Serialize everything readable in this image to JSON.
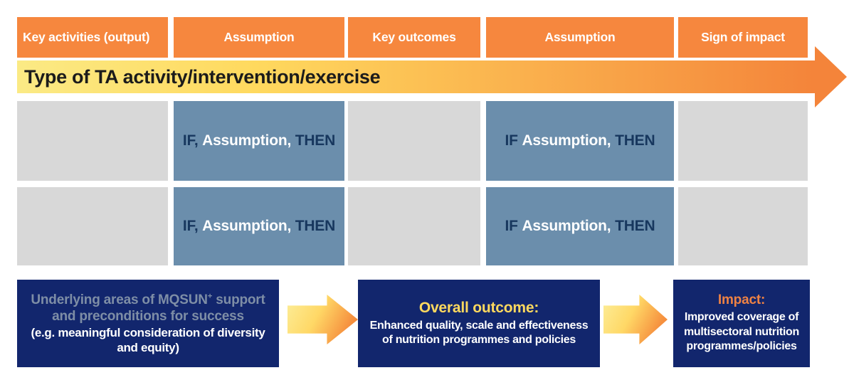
{
  "header": {
    "columns": [
      "Key activities (output)",
      "Assumption",
      "Key outcomes",
      "Assumption",
      "Sign of impact"
    ]
  },
  "banner": {
    "label": "Type of TA activity/intervention/exercise"
  },
  "cells": {
    "r1c2": {
      "if": "IF, ",
      "assumption": "Assumption, ",
      "then": "THEN"
    },
    "r1c4": {
      "if": "IF ",
      "assumption": "Assumption, ",
      "then": "THEN"
    },
    "r2c2": {
      "if": "IF, ",
      "assumption": "Assumption, ",
      "then": "THEN"
    },
    "r2c4": {
      "if": "IF ",
      "assumption": "Assumption, ",
      "then": "THEN"
    }
  },
  "bottom": {
    "box1": {
      "heading_pre": "Underlying areas of MQSUN",
      "heading_sup": "+",
      "heading_post": " support and preconditions for success",
      "body": "(e.g. meaningful consideration of diversity and equity)"
    },
    "box2": {
      "heading": "Overall outcome:",
      "body": "Enhanced quality, scale and effectiveness of nutrition programmes and policies"
    },
    "box3": {
      "heading": "Impact:",
      "body": "Improved coverage of multisectoral nutrition programmes/policies"
    }
  },
  "colors": {
    "header_orange": "#F6873E",
    "slate_blue": "#6B8EAC",
    "placeholder_gray": "#D8D8D8",
    "navy": "#12266D",
    "if_then_text": "#17375E",
    "muted_heading": "#7E8EA6",
    "outcome_yellow": "#FFD95E",
    "impact_orange": "#EE8244",
    "banner_gradient_start": "#FBEA85",
    "banner_gradient_end": "#F4843A"
  }
}
